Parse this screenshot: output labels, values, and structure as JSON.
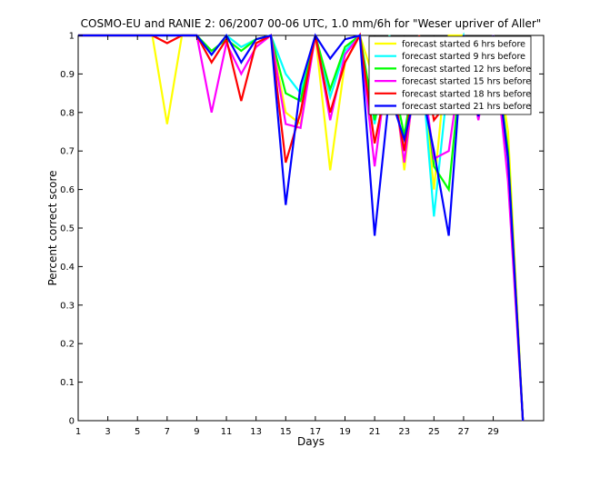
{
  "chart_data": {
    "type": "line",
    "title": "COSMO-EU and RANIE 2: 06/2007 00-06 UTC, 1.0 mm/6h for \"Weser upriver of Aller\"",
    "xlabel": "Days",
    "ylabel": "Percent correct score",
    "xlim": [
      1,
      32.4
    ],
    "ylim": [
      0,
      1
    ],
    "xticks": [
      1,
      3,
      5,
      7,
      9,
      11,
      13,
      15,
      17,
      19,
      21,
      23,
      25,
      27,
      29
    ],
    "xtick_labels": [
      "1",
      "3",
      "5",
      "7",
      "9",
      "11",
      "13",
      "15",
      "17",
      "19",
      "21",
      "23",
      "25",
      "27",
      "29"
    ],
    "yticks": [
      0,
      0.1,
      0.2,
      0.3,
      0.4,
      0.5,
      0.6,
      0.7,
      0.8,
      0.9,
      1
    ],
    "ytick_labels": [
      "0",
      "0.1",
      "0.2",
      "0.3",
      "0.4",
      "0.5",
      "0.6",
      "0.7",
      "0.8",
      "0.9",
      "1"
    ],
    "grid": false,
    "legend_position": "top-right",
    "x": [
      1,
      2,
      3,
      4,
      5,
      6,
      7,
      8,
      9,
      10,
      11,
      12,
      13,
      14,
      15,
      16,
      17,
      18,
      19,
      20,
      21,
      22,
      23,
      24,
      25,
      26,
      27,
      28,
      29,
      30,
      31
    ],
    "series": [
      {
        "name": "forecast started 6 hrs before",
        "color": "#ffff00",
        "values": [
          1,
          1,
          1,
          1,
          1,
          1,
          0.77,
          1,
          1,
          0.95,
          1,
          0.97,
          0.99,
          1,
          0.8,
          0.77,
          1,
          0.65,
          0.93,
          1,
          0.88,
          1,
          0.65,
          1,
          0.6,
          1,
          1,
          0.86,
          1,
          0.75,
          0
        ]
      },
      {
        "name": "forecast started 9 hrs before",
        "color": "#00ffff",
        "values": [
          1,
          1,
          1,
          1,
          1,
          1,
          1,
          1,
          1,
          0.95,
          1,
          0.97,
          0.99,
          1,
          0.9,
          0.85,
          1,
          0.84,
          0.96,
          1,
          0.77,
          1,
          0.8,
          1,
          0.53,
          0.9,
          1,
          0.85,
          1,
          0.65,
          0
        ]
      },
      {
        "name": "forecast started 12 hrs before",
        "color": "#00ff00",
        "values": [
          1,
          1,
          1,
          1,
          1,
          1,
          1,
          1,
          1,
          0.96,
          0.99,
          0.96,
          0.99,
          1,
          0.85,
          0.83,
          1,
          0.86,
          0.97,
          1,
          0.78,
          0.93,
          0.74,
          0.98,
          0.66,
          0.6,
          0.98,
          0.83,
          1,
          0.7,
          0
        ]
      },
      {
        "name": "forecast started 15 hrs before",
        "color": "#ff00ff",
        "values": [
          1,
          1,
          1,
          1,
          1,
          1,
          1,
          1,
          1,
          0.8,
          0.98,
          0.9,
          0.97,
          1,
          0.77,
          0.76,
          1,
          0.78,
          0.95,
          1,
          0.66,
          0.96,
          0.67,
          0.97,
          0.68,
          0.7,
          0.97,
          0.78,
          1,
          0.62,
          0
        ]
      },
      {
        "name": "forecast started 18 hrs before",
        "color": "#ff0000",
        "values": [
          1,
          1,
          1,
          1,
          1,
          1,
          0.98,
          1,
          1,
          0.93,
          0.99,
          0.83,
          0.98,
          1,
          0.67,
          0.8,
          1,
          0.8,
          0.93,
          1,
          0.72,
          0.91,
          0.7,
          1,
          0.78,
          0.83,
          1,
          0.8,
          1,
          0.68,
          0
        ]
      },
      {
        "name": "forecast started 21 hrs before",
        "color": "#0000ff",
        "values": [
          1,
          1,
          1,
          1,
          1,
          1,
          1,
          1,
          1,
          0.95,
          1,
          0.93,
          0.99,
          1,
          0.56,
          0.87,
          1,
          0.94,
          0.99,
          1,
          0.48,
          0.85,
          0.73,
          0.89,
          0.7,
          0.48,
          1,
          0.79,
          1,
          0.68,
          0
        ]
      }
    ]
  }
}
